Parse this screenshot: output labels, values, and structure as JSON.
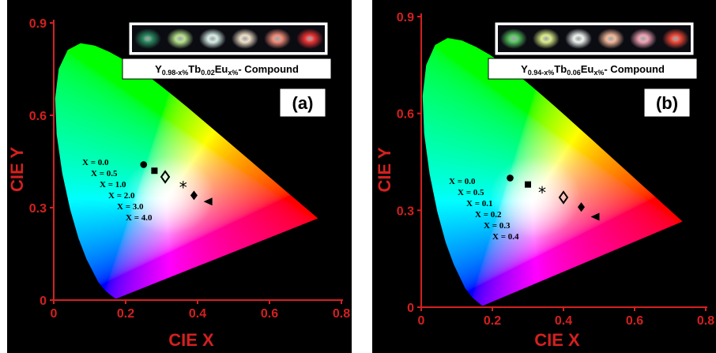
{
  "chart_data": [
    {
      "type": "scatter",
      "panel_label": "(a)",
      "legend_label": "Y0.98-x%Tb0.02Eux%- Compound",
      "legend_parts": {
        "base": "Y",
        "sub1": "0.98-x%",
        "el2": "Tb",
        "sub2": "0.02",
        "el3": "Eu",
        "sub3": "x%",
        "tail": "- Compound"
      },
      "xlabel": "CIE X",
      "ylabel": "CIE Y",
      "xlim": [
        0,
        0.8
      ],
      "ylim": [
        0,
        0.9
      ],
      "xticks": [
        "0",
        "0.2",
        "0.4",
        "0.6",
        "0.8"
      ],
      "yticks": [
        "0",
        "0.3",
        "0.6",
        "0.9"
      ],
      "x_labels": [
        "X = 0.0",
        "X = 0.5",
        "X = 1.0",
        "X = 2.0",
        "X = 3.0",
        "X = 4.0"
      ],
      "points": [
        {
          "x": 0.25,
          "y": 0.44,
          "marker": "circle"
        },
        {
          "x": 0.28,
          "y": 0.42,
          "marker": "square"
        },
        {
          "x": 0.31,
          "y": 0.4,
          "marker": "diamond-open"
        },
        {
          "x": 0.36,
          "y": 0.37,
          "marker": "star"
        },
        {
          "x": 0.39,
          "y": 0.34,
          "marker": "diamond"
        },
        {
          "x": 0.43,
          "y": 0.32,
          "marker": "triangle-left"
        }
      ],
      "swatches": [
        "#2a8a60",
        "#b6e38c",
        "#d6eee6",
        "#efe0c8",
        "#ef8c78",
        "#ee3434"
      ]
    },
    {
      "type": "scatter",
      "panel_label": "(b)",
      "legend_label": "Y0.94-x%Tb0.06Eux%- Compound",
      "legend_parts": {
        "base": "Y",
        "sub1": "0.94-x%",
        "el2": "Tb",
        "sub2": "0.06",
        "el3": "Eu",
        "sub3": "x%",
        "tail": "- Compound"
      },
      "xlabel": "CIE X",
      "ylabel": "CIE Y",
      "xlim": [
        0,
        0.8
      ],
      "ylim": [
        0,
        0.9
      ],
      "xticks": [
        "0",
        "0.2",
        "0.4",
        "0.6",
        "0.8"
      ],
      "yticks": [
        "0",
        "0.3",
        "0.6",
        "0.9"
      ],
      "x_labels": [
        "X = 0.0",
        "X = 0.5",
        "X = 0.1",
        "X = 0.2",
        "X = 0.3",
        "X = 0.4"
      ],
      "points": [
        {
          "x": 0.25,
          "y": 0.4,
          "marker": "circle"
        },
        {
          "x": 0.3,
          "y": 0.38,
          "marker": "square"
        },
        {
          "x": 0.34,
          "y": 0.36,
          "marker": "star"
        },
        {
          "x": 0.4,
          "y": 0.34,
          "marker": "diamond-open"
        },
        {
          "x": 0.45,
          "y": 0.31,
          "marker": "diamond"
        },
        {
          "x": 0.49,
          "y": 0.28,
          "marker": "triangle-left"
        }
      ],
      "swatches": [
        "#57c560",
        "#dcee8a",
        "#eef4f0",
        "#f2b898",
        "#f0a3b4",
        "#f04a38"
      ]
    }
  ]
}
